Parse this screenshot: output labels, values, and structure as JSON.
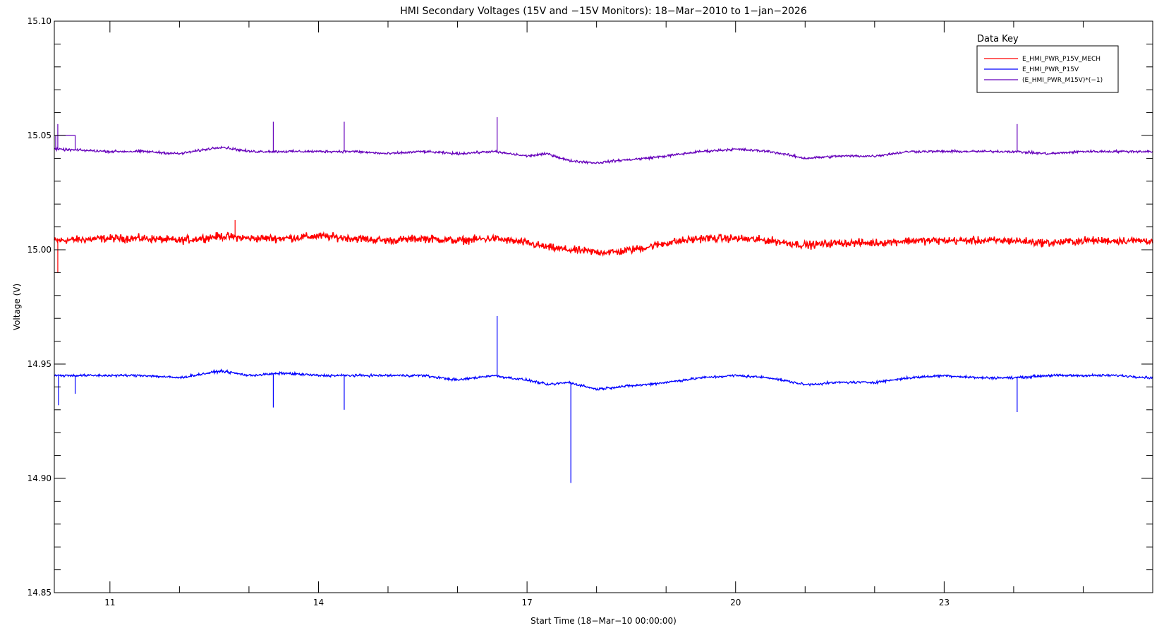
{
  "chart_data": {
    "type": "line",
    "title": "HMI Secondary Voltages (15V and −15V Monitors): 18−Mar−2010 to 1−jan−2026",
    "xlabel": "Start Time (18−Mar−10 00:00:00)",
    "ylabel": "Voltage (V)",
    "xlim": [
      10.2,
      26.0
    ],
    "ylim": [
      14.85,
      15.1
    ],
    "x_ticks": [
      11,
      14,
      17,
      20,
      23
    ],
    "x_tick_labels": [
      "11",
      "14",
      "17",
      "20",
      "23"
    ],
    "y_ticks": [
      14.85,
      14.9,
      14.95,
      15.0,
      15.05,
      15.1
    ],
    "y_tick_labels": [
      "14.85",
      "14.90",
      "14.95",
      "15.00",
      "15.05",
      "15.10"
    ],
    "grid": false,
    "legend_title": "Data Key",
    "legend_position": "top-right",
    "series": [
      {
        "name": "E_HMI_PWR_P15V_MECH",
        "color": "#ff0000",
        "noise": 0.0025,
        "x": [
          10.2,
          11.0,
          11.5,
          12.0,
          12.6,
          13.0,
          13.5,
          14.0,
          14.5,
          15.0,
          15.5,
          16.0,
          16.5,
          17.0,
          17.3,
          17.6,
          18.0,
          18.3,
          18.7,
          19.0,
          19.5,
          20.0,
          20.5,
          21.0,
          21.5,
          22.0,
          22.5,
          23.0,
          23.5,
          24.0,
          24.5,
          25.0,
          25.5,
          26.0
        ],
        "y": [
          15.004,
          15.005,
          15.005,
          15.004,
          15.006,
          15.005,
          15.005,
          15.006,
          15.005,
          15.004,
          15.005,
          15.004,
          15.005,
          15.003,
          15.001,
          15.0,
          14.999,
          14.999,
          15.001,
          15.003,
          15.005,
          15.005,
          15.004,
          15.002,
          15.003,
          15.003,
          15.004,
          15.004,
          15.004,
          15.004,
          15.003,
          15.004,
          15.004,
          15.004
        ]
      },
      {
        "name": "E_HMI_PWR_P15V",
        "color": "#0000ff",
        "noise": 0.0008,
        "x": [
          10.2,
          11.0,
          11.5,
          12.0,
          12.6,
          13.0,
          13.5,
          14.0,
          14.5,
          15.0,
          15.5,
          16.0,
          16.5,
          17.0,
          17.3,
          17.6,
          18.0,
          18.3,
          18.7,
          19.0,
          19.5,
          20.0,
          20.5,
          21.0,
          21.5,
          22.0,
          22.5,
          23.0,
          23.5,
          24.0,
          24.5,
          25.0,
          25.5,
          26.0
        ],
        "y": [
          14.945,
          14.945,
          14.945,
          14.944,
          14.947,
          14.945,
          14.946,
          14.945,
          14.945,
          14.945,
          14.945,
          14.943,
          14.945,
          14.943,
          14.941,
          14.942,
          14.939,
          14.94,
          14.941,
          14.942,
          14.944,
          14.945,
          14.944,
          14.941,
          14.942,
          14.942,
          14.944,
          14.945,
          14.944,
          14.944,
          14.945,
          14.945,
          14.945,
          14.944
        ]
      },
      {
        "name": "(E_HMI_PWR_M15V)*(−1)",
        "color": "#6600bb",
        "noise": 0.0008,
        "x": [
          10.2,
          11.0,
          11.5,
          12.0,
          12.6,
          13.0,
          13.5,
          14.0,
          14.5,
          15.0,
          15.5,
          16.0,
          16.5,
          17.0,
          17.3,
          17.6,
          18.0,
          18.3,
          18.7,
          19.0,
          19.5,
          20.0,
          20.5,
          21.0,
          21.5,
          22.0,
          22.5,
          23.0,
          23.5,
          24.0,
          24.5,
          25.0,
          25.5,
          26.0
        ],
        "y": [
          15.044,
          15.043,
          15.043,
          15.042,
          15.045,
          15.043,
          15.043,
          15.043,
          15.043,
          15.042,
          15.043,
          15.042,
          15.043,
          15.041,
          15.042,
          15.039,
          15.038,
          15.039,
          15.04,
          15.041,
          15.043,
          15.044,
          15.043,
          15.04,
          15.041,
          15.041,
          15.043,
          15.043,
          15.043,
          15.043,
          15.042,
          15.043,
          15.043,
          15.043
        ]
      }
    ],
    "spikes": [
      {
        "series": 0,
        "x": 10.25,
        "y": 14.99
      },
      {
        "series": 0,
        "x": 12.8,
        "y": 15.013
      },
      {
        "series": 1,
        "x": 10.26,
        "y": 14.932
      },
      {
        "series": 1,
        "x": 10.5,
        "y": 14.937
      },
      {
        "series": 1,
        "x": 13.35,
        "y": 14.931
      },
      {
        "series": 1,
        "x": 14.37,
        "y": 14.93
      },
      {
        "series": 1,
        "x": 16.57,
        "y": 14.971
      },
      {
        "series": 1,
        "x": 17.63,
        "y": 14.898
      },
      {
        "series": 1,
        "x": 24.05,
        "y": 14.929
      },
      {
        "series": 2,
        "x": 10.25,
        "y": 15.055
      },
      {
        "series": 2,
        "x": 13.35,
        "y": 15.056
      },
      {
        "series": 2,
        "x": 14.37,
        "y": 15.056
      },
      {
        "series": 2,
        "x": 16.57,
        "y": 15.058
      },
      {
        "series": 2,
        "x": 24.05,
        "y": 15.055
      }
    ],
    "step_segments": [
      {
        "series": 2,
        "x": [
          10.22,
          10.5
        ],
        "y": 15.05
      }
    ]
  }
}
